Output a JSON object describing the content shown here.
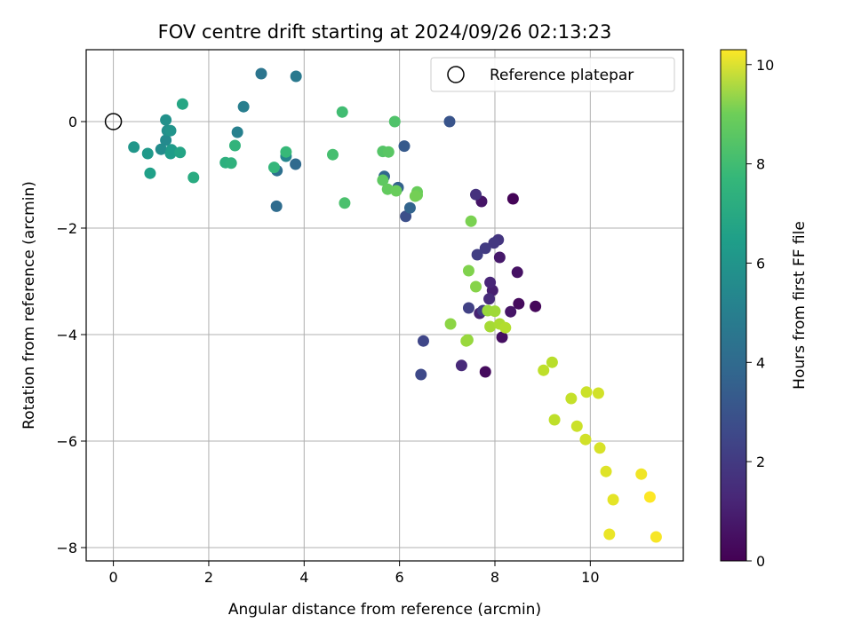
{
  "chart_data": {
    "type": "scatter",
    "title": "FOV centre drift starting at 2024/09/26 02:13:23",
    "xlabel": "Angular distance from reference (arcmin)",
    "ylabel": "Rotation from reference (arcmin)",
    "xlim": [
      -0.57,
      11.95
    ],
    "ylim": [
      -8.25,
      1.35
    ],
    "xticks": [
      0,
      2,
      4,
      6,
      8,
      10
    ],
    "yticks": [
      -8,
      -6,
      -4,
      -2,
      0
    ],
    "grid": true,
    "legend": {
      "position": "top-right",
      "entries": [
        "Reference platepar"
      ]
    },
    "reference_point": {
      "x": 0,
      "y": 0
    },
    "colorbar": {
      "label": "Hours from first FF file",
      "colormap": "viridis",
      "range": [
        0,
        10.3
      ],
      "ticks": [
        0,
        2,
        4,
        6,
        8,
        10
      ]
    },
    "points": [
      {
        "x": 8.38,
        "y": -1.45,
        "c": 0.1
      },
      {
        "x": 8.85,
        "y": -3.47,
        "c": 0.2
      },
      {
        "x": 8.5,
        "y": -3.42,
        "c": 0.3
      },
      {
        "x": 8.47,
        "y": -2.83,
        "c": 0.5
      },
      {
        "x": 8.33,
        "y": -3.57,
        "c": 0.6
      },
      {
        "x": 8.15,
        "y": -4.05,
        "c": 0.4
      },
      {
        "x": 7.8,
        "y": -4.7,
        "c": 0.3
      },
      {
        "x": 7.72,
        "y": -1.5,
        "c": 0.6
      },
      {
        "x": 8.1,
        "y": -2.55,
        "c": 0.7
      },
      {
        "x": 7.95,
        "y": -3.17,
        "c": 0.9
      },
      {
        "x": 7.68,
        "y": -3.6,
        "c": 1.0
      },
      {
        "x": 7.3,
        "y": -4.58,
        "c": 1.2
      },
      {
        "x": 7.9,
        "y": -3.02,
        "c": 1.1
      },
      {
        "x": 7.88,
        "y": -3.33,
        "c": 1.3
      },
      {
        "x": 7.6,
        "y": -1.37,
        "c": 1.5
      },
      {
        "x": 8.07,
        "y": -2.22,
        "c": 1.6
      },
      {
        "x": 7.98,
        "y": -2.28,
        "c": 1.7
      },
      {
        "x": 7.8,
        "y": -2.38,
        "c": 1.8
      },
      {
        "x": 7.63,
        "y": -2.5,
        "c": 1.9
      },
      {
        "x": 7.75,
        "y": -3.55,
        "c": 1.8
      },
      {
        "x": 7.45,
        "y": -3.5,
        "c": 2.0
      },
      {
        "x": 6.5,
        "y": -4.12,
        "c": 2.2
      },
      {
        "x": 6.45,
        "y": -4.75,
        "c": 2.3
      },
      {
        "x": 6.13,
        "y": -1.78,
        "c": 2.5
      },
      {
        "x": 7.05,
        "y": 0.0,
        "c": 2.7
      },
      {
        "x": 6.1,
        "y": -0.46,
        "c": 2.9
      },
      {
        "x": 5.97,
        "y": -1.24,
        "c": 3.2
      },
      {
        "x": 5.68,
        "y": -1.03,
        "c": 3.4
      },
      {
        "x": 6.22,
        "y": -1.62,
        "c": 3.3
      },
      {
        "x": 3.82,
        "y": -0.8,
        "c": 3.5
      },
      {
        "x": 3.42,
        "y": -1.59,
        "c": 3.6
      },
      {
        "x": 3.43,
        "y": -0.92,
        "c": 3.8
      },
      {
        "x": 3.1,
        "y": 0.9,
        "c": 4.0
      },
      {
        "x": 3.83,
        "y": 0.85,
        "c": 4.2
      },
      {
        "x": 2.73,
        "y": 0.28,
        "c": 4.4
      },
      {
        "x": 2.6,
        "y": -0.2,
        "c": 4.5
      },
      {
        "x": 3.62,
        "y": -0.65,
        "c": 4.7
      },
      {
        "x": 1.1,
        "y": -0.35,
        "c": 4.9
      },
      {
        "x": 1.0,
        "y": -0.52,
        "c": 5.0
      },
      {
        "x": 1.13,
        "y": -0.17,
        "c": 5.1
      },
      {
        "x": 1.1,
        "y": 0.03,
        "c": 5.2
      },
      {
        "x": 1.2,
        "y": -0.17,
        "c": 5.3
      },
      {
        "x": 0.43,
        "y": -0.48,
        "c": 5.4
      },
      {
        "x": 0.72,
        "y": -0.6,
        "c": 5.5
      },
      {
        "x": 1.22,
        "y": -0.53,
        "c": 5.6
      },
      {
        "x": 1.2,
        "y": -0.6,
        "c": 5.7
      },
      {
        "x": 0.77,
        "y": -0.97,
        "c": 5.8
      },
      {
        "x": 1.4,
        "y": -0.58,
        "c": 6.0
      },
      {
        "x": 1.45,
        "y": 0.33,
        "c": 6.1
      },
      {
        "x": 1.68,
        "y": -1.05,
        "c": 6.3
      },
      {
        "x": 2.35,
        "y": -0.77,
        "c": 6.5
      },
      {
        "x": 2.47,
        "y": -0.78,
        "c": 6.6
      },
      {
        "x": 2.55,
        "y": -0.45,
        "c": 6.7
      },
      {
        "x": 3.37,
        "y": -0.86,
        "c": 6.8
      },
      {
        "x": 3.62,
        "y": -0.57,
        "c": 6.9
      },
      {
        "x": 4.8,
        "y": 0.18,
        "c": 7.1
      },
      {
        "x": 4.6,
        "y": -0.62,
        "c": 7.2
      },
      {
        "x": 4.85,
        "y": -1.53,
        "c": 7.3
      },
      {
        "x": 5.9,
        "y": 0.0,
        "c": 7.4
      },
      {
        "x": 5.65,
        "y": -0.56,
        "c": 7.5
      },
      {
        "x": 5.77,
        "y": -0.57,
        "c": 7.6
      },
      {
        "x": 5.65,
        "y": -1.1,
        "c": 7.7
      },
      {
        "x": 5.75,
        "y": -1.27,
        "c": 7.8
      },
      {
        "x": 5.93,
        "y": -1.3,
        "c": 7.9
      },
      {
        "x": 6.37,
        "y": -1.32,
        "c": 7.9
      },
      {
        "x": 6.37,
        "y": -1.38,
        "c": 8.0
      },
      {
        "x": 6.33,
        "y": -1.4,
        "c": 8.1
      },
      {
        "x": 7.5,
        "y": -1.87,
        "c": 8.2
      },
      {
        "x": 7.45,
        "y": -2.8,
        "c": 8.3
      },
      {
        "x": 7.6,
        "y": -3.1,
        "c": 8.4
      },
      {
        "x": 7.07,
        "y": -3.8,
        "c": 8.5
      },
      {
        "x": 7.43,
        "y": -4.1,
        "c": 8.6
      },
      {
        "x": 7.4,
        "y": -4.12,
        "c": 8.7
      },
      {
        "x": 7.85,
        "y": -3.55,
        "c": 8.7
      },
      {
        "x": 8.0,
        "y": -3.56,
        "c": 8.8
      },
      {
        "x": 7.9,
        "y": -3.85,
        "c": 8.9
      },
      {
        "x": 8.1,
        "y": -3.8,
        "c": 9.0
      },
      {
        "x": 8.22,
        "y": -3.87,
        "c": 9.1
      },
      {
        "x": 9.2,
        "y": -4.52,
        "c": 9.2
      },
      {
        "x": 9.02,
        "y": -4.67,
        "c": 9.3
      },
      {
        "x": 9.25,
        "y": -5.6,
        "c": 9.3
      },
      {
        "x": 9.6,
        "y": -5.2,
        "c": 9.4
      },
      {
        "x": 9.72,
        "y": -5.72,
        "c": 9.5
      },
      {
        "x": 9.92,
        "y": -5.08,
        "c": 9.5
      },
      {
        "x": 10.17,
        "y": -5.1,
        "c": 9.6
      },
      {
        "x": 9.9,
        "y": -5.97,
        "c": 9.6
      },
      {
        "x": 10.2,
        "y": -6.13,
        "c": 9.7
      },
      {
        "x": 10.33,
        "y": -6.57,
        "c": 9.8
      },
      {
        "x": 10.48,
        "y": -7.1,
        "c": 9.9
      },
      {
        "x": 10.4,
        "y": -7.75,
        "c": 10.0
      },
      {
        "x": 11.07,
        "y": -6.62,
        "c": 10.1
      },
      {
        "x": 11.25,
        "y": -7.05,
        "c": 10.3
      },
      {
        "x": 11.38,
        "y": -7.8,
        "c": 10.2
      }
    ]
  }
}
